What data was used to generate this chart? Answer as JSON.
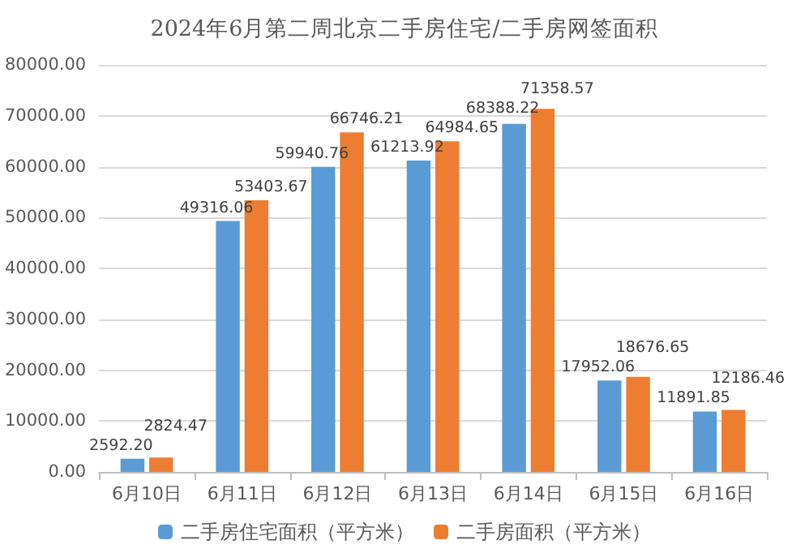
{
  "chart_data": {
    "type": "bar",
    "title": "2024年6月第二周北京二手房住宅/二手房网签面积",
    "categories": [
      "6月10日",
      "6月11日",
      "6月12日",
      "6月13日",
      "6月14日",
      "6月15日",
      "6月16日"
    ],
    "series": [
      {
        "name": "二手房住宅面积（平方米）",
        "color": "#5b9bd5",
        "values": [
          2592.2,
          49316.06,
          59940.76,
          61213.92,
          68388.22,
          17952.06,
          11891.85
        ],
        "value_labels": [
          "2592.20",
          "49316.06",
          "59940.76",
          "61213.92",
          "68388.22",
          "17952.06",
          "11891.85"
        ]
      },
      {
        "name": "二手房面积（平方米）",
        "color": "#ed7d31",
        "values": [
          2824.47,
          53403.67,
          66746.21,
          64984.65,
          71358.57,
          18676.65,
          12186.46
        ],
        "value_labels": [
          "2824.47",
          "53403.67",
          "66746.21",
          "64984.65",
          "71358.57",
          "18676.65",
          "12186.46"
        ]
      }
    ],
    "ylim": [
      0,
      80000
    ],
    "yticks": [
      {
        "value": 0,
        "label": "0.00"
      },
      {
        "value": 10000,
        "label": "10000.00"
      },
      {
        "value": 20000,
        "label": "20000.00"
      },
      {
        "value": 30000,
        "label": "30000.00"
      },
      {
        "value": 40000,
        "label": "40000.00"
      },
      {
        "value": 50000,
        "label": "50000.00"
      },
      {
        "value": 60000,
        "label": "60000.00"
      },
      {
        "value": 70000,
        "label": "70000.00"
      },
      {
        "value": 80000,
        "label": "80000.00"
      }
    ],
    "grid": "y",
    "legend": "bottom"
  }
}
